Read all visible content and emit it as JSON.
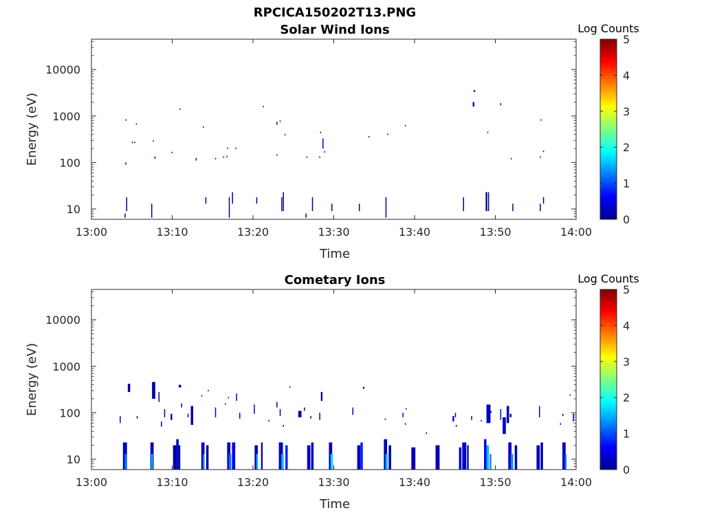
{
  "figure_title": "RPCICA150202T13.PNG",
  "chart_data": [
    {
      "type": "heatmap",
      "title": "Solar Wind Ions",
      "xlabel": "Time",
      "ylabel": "Energy (eV)",
      "x_unit": "minutes after 13:00",
      "x_range": [
        0,
        60
      ],
      "x_ticks": [
        0,
        10,
        20,
        30,
        40,
        50,
        60
      ],
      "x_tick_labels": [
        "13:00",
        "13:10",
        "13:20",
        "13:30",
        "13:40",
        "13:50",
        "14:00"
      ],
      "y_scale": "log",
      "y_range": [
        6,
        45000
      ],
      "y_ticks": [
        10,
        100,
        1000,
        10000
      ],
      "y_tick_labels": [
        "10",
        "100",
        "1000",
        "10000"
      ],
      "colorbar": {
        "label": "Log Counts",
        "range": [
          0,
          5
        ],
        "ticks": [
          "0",
          "1",
          "2",
          "3",
          "4",
          "5"
        ]
      },
      "points": [
        [
          4.1,
          6.5,
          0.1,
          8.0,
          0.1
        ],
        [
          4.3,
          9,
          0.1,
          18,
          0.1
        ],
        [
          7.4,
          6.5,
          0.1,
          13,
          0.1
        ],
        [
          17.0,
          6.5,
          0.1,
          18,
          0.1
        ],
        [
          17.4,
          13,
          0.1,
          23,
          0.1
        ],
        [
          20.4,
          13,
          0.1,
          18,
          0.1
        ],
        [
          23.5,
          9,
          0.1,
          18,
          0.1
        ],
        [
          23.7,
          9,
          0.1,
          23,
          0.1
        ],
        [
          26.5,
          6.5,
          0.1,
          8.0,
          0.1
        ],
        [
          27.3,
          9,
          0.1,
          18,
          0.1
        ],
        [
          29.7,
          9,
          0.1,
          13,
          0.1
        ],
        [
          33.1,
          9,
          0.1,
          13,
          0.1
        ],
        [
          36.4,
          6.5,
          0.1,
          18,
          0.1
        ],
        [
          46.0,
          9,
          0.1,
          18,
          0.1
        ],
        [
          48.8,
          9,
          0.2,
          23,
          0.1
        ],
        [
          49.1,
          9,
          0.1,
          23,
          0.1
        ],
        [
          52.1,
          9,
          0.1,
          13,
          0.1
        ],
        [
          55.5,
          9,
          0.1,
          13,
          0.1
        ],
        [
          55.9,
          13,
          0.1,
          18,
          0.1
        ],
        [
          14.1,
          13,
          0.1,
          18,
          0.1
        ],
        [
          4.2,
          90,
          0.1,
          100,
          0.2
        ],
        [
          4.2,
          800,
          0.1,
          850,
          0.2
        ],
        [
          5.0,
          270,
          0.1,
          280,
          0.2
        ],
        [
          5.3,
          270,
          0.1,
          280,
          0.2
        ],
        [
          5.5,
          680,
          0.1,
          700,
          0.2
        ],
        [
          7.6,
          280,
          0.1,
          300,
          0.2
        ],
        [
          7.8,
          120,
          0.1,
          135,
          0.2
        ],
        [
          9.9,
          160,
          0.1,
          170,
          0.2
        ],
        [
          10.9,
          1400,
          0.1,
          1450,
          0.2
        ],
        [
          12.9,
          110,
          0.1,
          125,
          0.2
        ],
        [
          13.8,
          580,
          0.1,
          600,
          0.2
        ],
        [
          15.3,
          120,
          0.1,
          125,
          0.2
        ],
        [
          16.3,
          130,
          0.1,
          135,
          0.2
        ],
        [
          16.7,
          130,
          0.1,
          140,
          0.2
        ],
        [
          16.8,
          200,
          0.1,
          210,
          0.2
        ],
        [
          17.8,
          200,
          0.1,
          210,
          0.2
        ],
        [
          21.2,
          1600,
          0.1,
          1650,
          0.2
        ],
        [
          22.9,
          140,
          0.1,
          150,
          0.2
        ],
        [
          22.9,
          650,
          0.1,
          750,
          0.2
        ],
        [
          23.3,
          750,
          0.1,
          800,
          0.2
        ],
        [
          23.9,
          400,
          0.1,
          410,
          0.2
        ],
        [
          26.6,
          130,
          0.1,
          135,
          0.2
        ],
        [
          28.2,
          130,
          0.1,
          135,
          0.2
        ],
        [
          28.3,
          440,
          0.1,
          460,
          0.2
        ],
        [
          28.6,
          200,
          0.1,
          330,
          0.2
        ],
        [
          28.8,
          170,
          0.1,
          175,
          0.2
        ],
        [
          34.3,
          360,
          0.1,
          370,
          0.2
        ],
        [
          36.6,
          410,
          0.1,
          420,
          0.2
        ],
        [
          38.8,
          620,
          0.1,
          640,
          0.2
        ],
        [
          47.2,
          1600,
          0.2,
          2000,
          0.2
        ],
        [
          47.3,
          3300,
          0.2,
          3600,
          0.2
        ],
        [
          49.0,
          440,
          0.1,
          460,
          0.2
        ],
        [
          50.6,
          1700,
          0.1,
          1900,
          0.2
        ],
        [
          51.9,
          120,
          0.1,
          125,
          0.2
        ],
        [
          55.5,
          130,
          0.1,
          135,
          0.2
        ],
        [
          55.6,
          800,
          0.1,
          850,
          0.2
        ],
        [
          55.9,
          170,
          0.1,
          180,
          0.2
        ]
      ]
    },
    {
      "type": "heatmap",
      "title": "Cometary Ions",
      "xlabel": "Time",
      "ylabel": "Energy (eV)",
      "x_unit": "minutes after 13:00",
      "x_range": [
        0,
        60
      ],
      "x_ticks": [
        0,
        10,
        20,
        30,
        40,
        50,
        60
      ],
      "x_tick_labels": [
        "13:00",
        "13:10",
        "13:20",
        "13:30",
        "13:40",
        "13:50",
        "14:00"
      ],
      "y_scale": "log",
      "y_range": [
        6,
        45000
      ],
      "y_ticks": [
        10,
        100,
        1000,
        10000
      ],
      "y_tick_labels": [
        "10",
        "100",
        "1000",
        "10000"
      ],
      "colorbar": {
        "label": "Log Counts",
        "range": [
          0,
          5
        ],
        "ticks": [
          "0",
          "1",
          "2",
          "3",
          "4",
          "5"
        ]
      },
      "points": [
        [
          3.9,
          6.0,
          0.5,
          23,
          0.3
        ],
        [
          4.1,
          6.0,
          0.3,
          13,
          1.2
        ],
        [
          7.3,
          6.0,
          0.4,
          23,
          0.3
        ],
        [
          7.4,
          6.0,
          0.2,
          13,
          1.6
        ],
        [
          10.1,
          6.0,
          0.4,
          20,
          0.2
        ],
        [
          10.5,
          6.0,
          0.3,
          27,
          0.3
        ],
        [
          10.8,
          6.0,
          0.2,
          20,
          0.2
        ],
        [
          13.6,
          6.0,
          0.4,
          23,
          0.3
        ],
        [
          13.8,
          6.0,
          0.2,
          13,
          1.3
        ],
        [
          14.2,
          6.0,
          0.3,
          20,
          0.1
        ],
        [
          16.8,
          6.0,
          0.4,
          23,
          0.3
        ],
        [
          17.0,
          6.0,
          0.3,
          13,
          1.2
        ],
        [
          17.4,
          6.0,
          0.4,
          23,
          0.5
        ],
        [
          20.2,
          6.0,
          0.4,
          20,
          0.3
        ],
        [
          20.4,
          6.0,
          0.2,
          13,
          1.5
        ],
        [
          21.0,
          6.0,
          0.2,
          23,
          0.3
        ],
        [
          23.2,
          6.0,
          0.5,
          23,
          0.3
        ],
        [
          23.5,
          6.0,
          0.3,
          13,
          1.5
        ],
        [
          24.0,
          6.0,
          0.3,
          20,
          0.8
        ],
        [
          26.7,
          6.0,
          0.4,
          20,
          0.4
        ],
        [
          27.2,
          6.0,
          0.3,
          23,
          0.3
        ],
        [
          29.4,
          6.0,
          0.4,
          23,
          0.3
        ],
        [
          29.6,
          6.0,
          0.3,
          13,
          1.7
        ],
        [
          32.9,
          6.0,
          0.4,
          20,
          0.3
        ],
        [
          33.3,
          6.0,
          0.3,
          23,
          0.8
        ],
        [
          36.2,
          6.0,
          0.4,
          27,
          0.3
        ],
        [
          36.4,
          6.0,
          0.3,
          13,
          1.6
        ],
        [
          36.8,
          6.0,
          0.3,
          20,
          0.2
        ],
        [
          39.6,
          6.0,
          0.5,
          18,
          0.3
        ],
        [
          42.6,
          6.0,
          0.5,
          20,
          0.3
        ],
        [
          45.5,
          6.0,
          0.3,
          18,
          0.3
        ],
        [
          45.9,
          6.0,
          0.5,
          23,
          0.4
        ],
        [
          46.5,
          6.0,
          0.2,
          20,
          0.3
        ],
        [
          48.6,
          6.0,
          0.3,
          27,
          0.5
        ],
        [
          48.9,
          6.0,
          0.3,
          20,
          1.5
        ],
        [
          49.3,
          6.0,
          0.2,
          13,
          1.2
        ],
        [
          51.6,
          6.0,
          0.4,
          23,
          0.3
        ],
        [
          51.9,
          6.0,
          0.3,
          13,
          1.3
        ],
        [
          52.4,
          6.0,
          0.3,
          20,
          0.2
        ],
        [
          55.1,
          6.0,
          0.4,
          20,
          0.3
        ],
        [
          55.6,
          6.0,
          0.3,
          23,
          0.3
        ],
        [
          58.3,
          6.0,
          0.4,
          23,
          0.3
        ],
        [
          58.6,
          6.0,
          0.2,
          13,
          1.2
        ],
        [
          3.5,
          60,
          0.1,
          85,
          0.2
        ],
        [
          4.5,
          280,
          0.3,
          420,
          0.2
        ],
        [
          5.6,
          75,
          0.1,
          85,
          0.2
        ],
        [
          7.5,
          200,
          0.4,
          460,
          0.2
        ],
        [
          8.3,
          170,
          0.1,
          280,
          0.2
        ],
        [
          8.6,
          50,
          0.1,
          65,
          0.2
        ],
        [
          9.0,
          80,
          0.1,
          120,
          0.2
        ],
        [
          9.8,
          70,
          0.2,
          95,
          0.2
        ],
        [
          10.8,
          350,
          0.3,
          400,
          0.2
        ],
        [
          11.1,
          130,
          0.1,
          160,
          0.2
        ],
        [
          11.9,
          80,
          0.1,
          95,
          0.2
        ],
        [
          12.3,
          55,
          0.3,
          140,
          0.2
        ],
        [
          13.6,
          230,
          0.1,
          240,
          0.2
        ],
        [
          14.4,
          300,
          0.1,
          310,
          0.2
        ],
        [
          15.3,
          80,
          0.1,
          130,
          0.2
        ],
        [
          16.5,
          150,
          0.1,
          160,
          0.2
        ],
        [
          16.9,
          210,
          0.1,
          220,
          0.2
        ],
        [
          17.9,
          180,
          0.1,
          260,
          0.2
        ],
        [
          18.3,
          75,
          0.1,
          100,
          0.2
        ],
        [
          20.1,
          95,
          0.1,
          150,
          0.2
        ],
        [
          21.9,
          65,
          0.1,
          70,
          0.2
        ],
        [
          22.9,
          130,
          0.1,
          170,
          0.2
        ],
        [
          23.3,
          85,
          0.1,
          120,
          0.2
        ],
        [
          23.7,
          50,
          0.1,
          55,
          0.2
        ],
        [
          24.5,
          360,
          0.1,
          370,
          0.2
        ],
        [
          25.6,
          80,
          0.4,
          110,
          0.2
        ],
        [
          26.3,
          110,
          0.1,
          130,
          0.2
        ],
        [
          27.1,
          75,
          0.1,
          85,
          0.2
        ],
        [
          28.2,
          70,
          0.1,
          100,
          0.2
        ],
        [
          28.4,
          180,
          0.2,
          280,
          0.2
        ],
        [
          32.3,
          90,
          0.1,
          130,
          0.2
        ],
        [
          33.6,
          330,
          0.2,
          360,
          0.2
        ],
        [
          36.3,
          70,
          0.1,
          75,
          0.2
        ],
        [
          38.9,
          120,
          0.1,
          125,
          0.2
        ],
        [
          38.5,
          80,
          0.1,
          100,
          0.2
        ],
        [
          38.8,
          55,
          0.1,
          60,
          0.2
        ],
        [
          41.4,
          35,
          0.1,
          38,
          0.2
        ],
        [
          44.7,
          65,
          0.2,
          85,
          0.2
        ],
        [
          45.0,
          80,
          0.1,
          100,
          0.2
        ],
        [
          45.1,
          50,
          0.1,
          55,
          0.2
        ],
        [
          47.0,
          70,
          0.1,
          85,
          0.2
        ],
        [
          48.2,
          65,
          0.1,
          70,
          0.2
        ],
        [
          48.9,
          60,
          0.5,
          150,
          0.3
        ],
        [
          49.4,
          100,
          0.1,
          110,
          0.2
        ],
        [
          50.6,
          70,
          0.1,
          120,
          0.2
        ],
        [
          50.9,
          35,
          0.4,
          80,
          0.3
        ],
        [
          51.4,
          60,
          0.3,
          140,
          0.2
        ],
        [
          51.8,
          80,
          0.2,
          95,
          0.2
        ],
        [
          55.4,
          80,
          0.1,
          140,
          0.2
        ],
        [
          58.0,
          55,
          0.1,
          60,
          0.2
        ],
        [
          58.3,
          85,
          0.1,
          95,
          0.2
        ],
        [
          59.2,
          240,
          0.1,
          250,
          0.2
        ],
        [
          59.6,
          65,
          0.1,
          95,
          0.2
        ]
      ]
    }
  ]
}
